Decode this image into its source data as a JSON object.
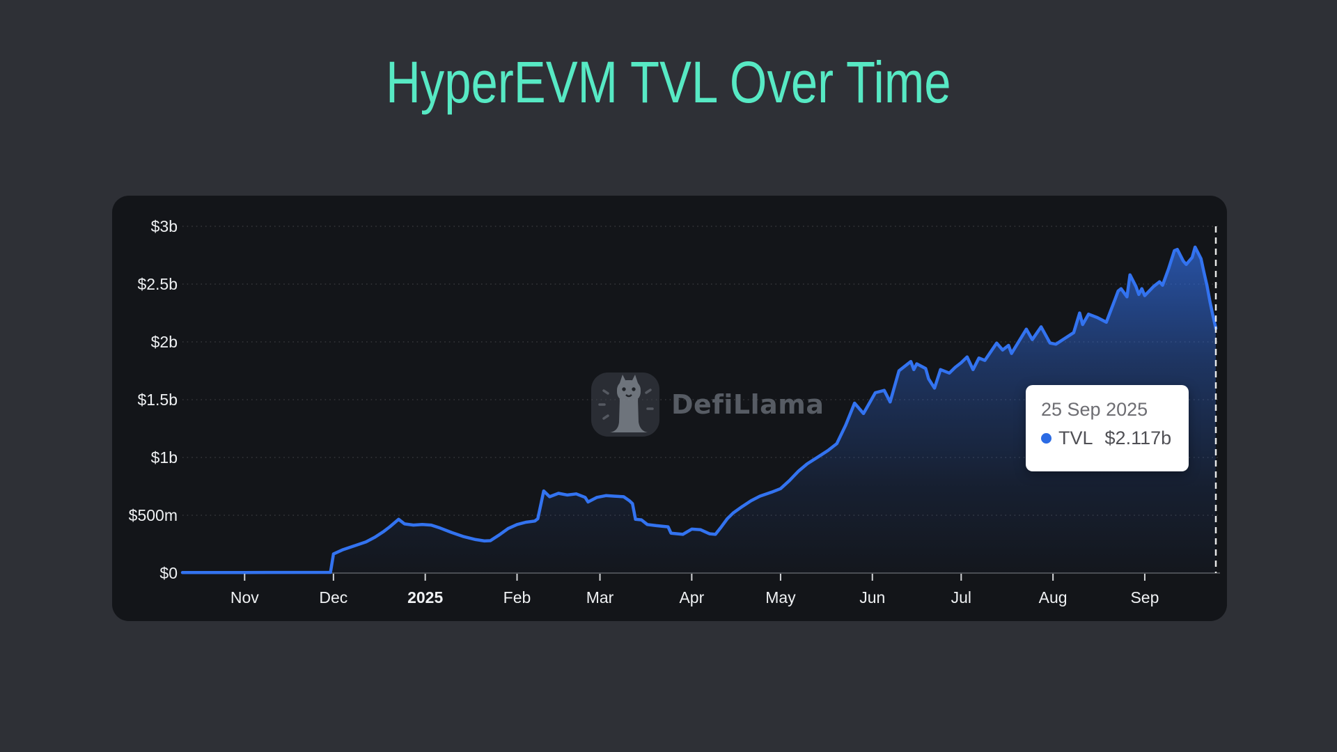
{
  "page": {
    "title": "HyperEVM TVL Over Time",
    "background_color": "#2e3036",
    "card_color": "#131519",
    "accent_color": "#57e9c4"
  },
  "watermark": {
    "brand": "DefiLlama"
  },
  "tooltip": {
    "date": "25 Sep 2025",
    "series": "TVL",
    "value": "$2.117b",
    "dot_color": "#2b6be4"
  },
  "chart_data": {
    "type": "area",
    "title": "HyperEVM TVL Over Time",
    "series_name": "TVL",
    "unit": "USD billions",
    "line_color": "#3373f0",
    "crosshair_color": "#e8e8e8",
    "axis_color": "#4b4e53",
    "grid_on": true,
    "x_range": [
      "2024-10-11",
      "2025-09-25"
    ],
    "ylim_billions": [
      0,
      3
    ],
    "y_ticks": [
      "$3b",
      "$2.5b",
      "$2b",
      "$1.5b",
      "$1b",
      "$500m",
      "$0"
    ],
    "y_tick_values_billions": [
      3,
      2.5,
      2,
      1.5,
      1,
      0.5,
      0
    ],
    "x_ticks": [
      {
        "label": "Nov",
        "date": "2024-11-01",
        "bold": false
      },
      {
        "label": "Dec",
        "date": "2024-12-01",
        "bold": false
      },
      {
        "label": "2025",
        "date": "2025-01-01",
        "bold": true
      },
      {
        "label": "Feb",
        "date": "2025-02-01",
        "bold": false
      },
      {
        "label": "Mar",
        "date": "2025-03-01",
        "bold": false
      },
      {
        "label": "Apr",
        "date": "2025-04-01",
        "bold": false
      },
      {
        "label": "May",
        "date": "2025-05-01",
        "bold": false
      },
      {
        "label": "Jun",
        "date": "2025-06-01",
        "bold": false
      },
      {
        "label": "Jul",
        "date": "2025-07-01",
        "bold": false
      },
      {
        "label": "Aug",
        "date": "2025-08-01",
        "bold": false
      },
      {
        "label": "Sep",
        "date": "2025-09-01",
        "bold": false
      }
    ],
    "crosshair_date": "2025-09-25",
    "highlighted_point": {
      "date": "2025-09-25",
      "value_billions": 2.117
    },
    "points": [
      [
        "2024-10-11",
        0.004
      ],
      [
        "2024-11-01",
        0.005
      ],
      [
        "2024-11-30",
        0.006
      ],
      [
        "2024-12-01",
        0.165
      ],
      [
        "2024-12-04",
        0.2
      ],
      [
        "2024-12-08",
        0.235
      ],
      [
        "2024-12-12",
        0.27
      ],
      [
        "2024-12-15",
        0.31
      ],
      [
        "2024-12-18",
        0.36
      ],
      [
        "2024-12-20",
        0.4
      ],
      [
        "2024-12-23",
        0.465
      ],
      [
        "2024-12-25",
        0.425
      ],
      [
        "2024-12-28",
        0.415
      ],
      [
        "2024-12-31",
        0.42
      ],
      [
        "2025-01-03",
        0.415
      ],
      [
        "2025-01-06",
        0.39
      ],
      [
        "2025-01-10",
        0.35
      ],
      [
        "2025-01-14",
        0.315
      ],
      [
        "2025-01-18",
        0.29
      ],
      [
        "2025-01-21",
        0.278
      ],
      [
        "2025-01-23",
        0.28
      ],
      [
        "2025-01-26",
        0.33
      ],
      [
        "2025-01-29",
        0.385
      ],
      [
        "2025-02-01",
        0.42
      ],
      [
        "2025-02-04",
        0.44
      ],
      [
        "2025-02-07",
        0.45
      ],
      [
        "2025-02-08",
        0.47
      ],
      [
        "2025-02-10",
        0.71
      ],
      [
        "2025-02-12",
        0.66
      ],
      [
        "2025-02-15",
        0.69
      ],
      [
        "2025-02-18",
        0.675
      ],
      [
        "2025-02-21",
        0.685
      ],
      [
        "2025-02-24",
        0.655
      ],
      [
        "2025-02-25",
        0.615
      ],
      [
        "2025-02-28",
        0.655
      ],
      [
        "2025-03-03",
        0.67
      ],
      [
        "2025-03-06",
        0.665
      ],
      [
        "2025-03-09",
        0.66
      ],
      [
        "2025-03-11",
        0.625
      ],
      [
        "2025-03-12",
        0.6
      ],
      [
        "2025-03-13",
        0.465
      ],
      [
        "2025-03-15",
        0.46
      ],
      [
        "2025-03-17",
        0.42
      ],
      [
        "2025-03-20",
        0.41
      ],
      [
        "2025-03-24",
        0.4
      ],
      [
        "2025-03-25",
        0.345
      ],
      [
        "2025-03-29",
        0.335
      ],
      [
        "2025-04-01",
        0.38
      ],
      [
        "2025-04-04",
        0.375
      ],
      [
        "2025-04-07",
        0.34
      ],
      [
        "2025-04-09",
        0.335
      ],
      [
        "2025-04-11",
        0.4
      ],
      [
        "2025-04-13",
        0.47
      ],
      [
        "2025-04-15",
        0.52
      ],
      [
        "2025-04-18",
        0.575
      ],
      [
        "2025-04-21",
        0.625
      ],
      [
        "2025-04-24",
        0.665
      ],
      [
        "2025-04-28",
        0.7
      ],
      [
        "2025-05-01",
        0.73
      ],
      [
        "2025-05-04",
        0.8
      ],
      [
        "2025-05-07",
        0.88
      ],
      [
        "2025-05-10",
        0.945
      ],
      [
        "2025-05-14",
        1.01
      ],
      [
        "2025-05-17",
        1.06
      ],
      [
        "2025-05-20",
        1.12
      ],
      [
        "2025-05-23",
        1.28
      ],
      [
        "2025-05-26",
        1.47
      ],
      [
        "2025-05-29",
        1.38
      ],
      [
        "2025-06-02",
        1.56
      ],
      [
        "2025-06-05",
        1.58
      ],
      [
        "2025-06-07",
        1.48
      ],
      [
        "2025-06-10",
        1.75
      ],
      [
        "2025-06-14",
        1.83
      ],
      [
        "2025-06-15",
        1.76
      ],
      [
        "2025-06-16",
        1.81
      ],
      [
        "2025-06-19",
        1.77
      ],
      [
        "2025-06-20",
        1.68
      ],
      [
        "2025-06-22",
        1.6
      ],
      [
        "2025-06-24",
        1.76
      ],
      [
        "2025-06-27",
        1.73
      ],
      [
        "2025-06-29",
        1.78
      ],
      [
        "2025-07-01",
        1.82
      ],
      [
        "2025-07-03",
        1.87
      ],
      [
        "2025-07-05",
        1.76
      ],
      [
        "2025-07-07",
        1.86
      ],
      [
        "2025-07-09",
        1.84
      ],
      [
        "2025-07-13",
        1.99
      ],
      [
        "2025-07-15",
        1.93
      ],
      [
        "2025-07-17",
        1.97
      ],
      [
        "2025-07-18",
        1.9
      ],
      [
        "2025-07-23",
        2.11
      ],
      [
        "2025-07-25",
        2.02
      ],
      [
        "2025-07-28",
        2.13
      ],
      [
        "2025-07-31",
        1.99
      ],
      [
        "2025-08-02",
        1.98
      ],
      [
        "2025-08-05",
        2.03
      ],
      [
        "2025-08-08",
        2.08
      ],
      [
        "2025-08-10",
        2.25
      ],
      [
        "2025-08-11",
        2.15
      ],
      [
        "2025-08-13",
        2.24
      ],
      [
        "2025-08-16",
        2.21
      ],
      [
        "2025-08-19",
        2.17
      ],
      [
        "2025-08-22",
        2.37
      ],
      [
        "2025-08-23",
        2.44
      ],
      [
        "2025-08-24",
        2.46
      ],
      [
        "2025-08-26",
        2.39
      ],
      [
        "2025-08-27",
        2.58
      ],
      [
        "2025-08-29",
        2.48
      ],
      [
        "2025-08-30",
        2.41
      ],
      [
        "2025-08-31",
        2.46
      ],
      [
        "2025-09-01",
        2.4
      ],
      [
        "2025-09-04",
        2.48
      ],
      [
        "2025-09-06",
        2.52
      ],
      [
        "2025-09-07",
        2.49
      ],
      [
        "2025-09-09",
        2.63
      ],
      [
        "2025-09-11",
        2.79
      ],
      [
        "2025-09-12",
        2.8
      ],
      [
        "2025-09-14",
        2.7
      ],
      [
        "2025-09-15",
        2.67
      ],
      [
        "2025-09-16",
        2.7
      ],
      [
        "2025-09-17",
        2.73
      ],
      [
        "2025-09-18",
        2.82
      ],
      [
        "2025-09-20",
        2.72
      ],
      [
        "2025-09-21",
        2.6
      ],
      [
        "2025-09-22",
        2.49
      ],
      [
        "2025-09-23",
        2.35
      ],
      [
        "2025-09-24",
        2.23
      ],
      [
        "2025-09-25",
        2.117
      ]
    ]
  }
}
